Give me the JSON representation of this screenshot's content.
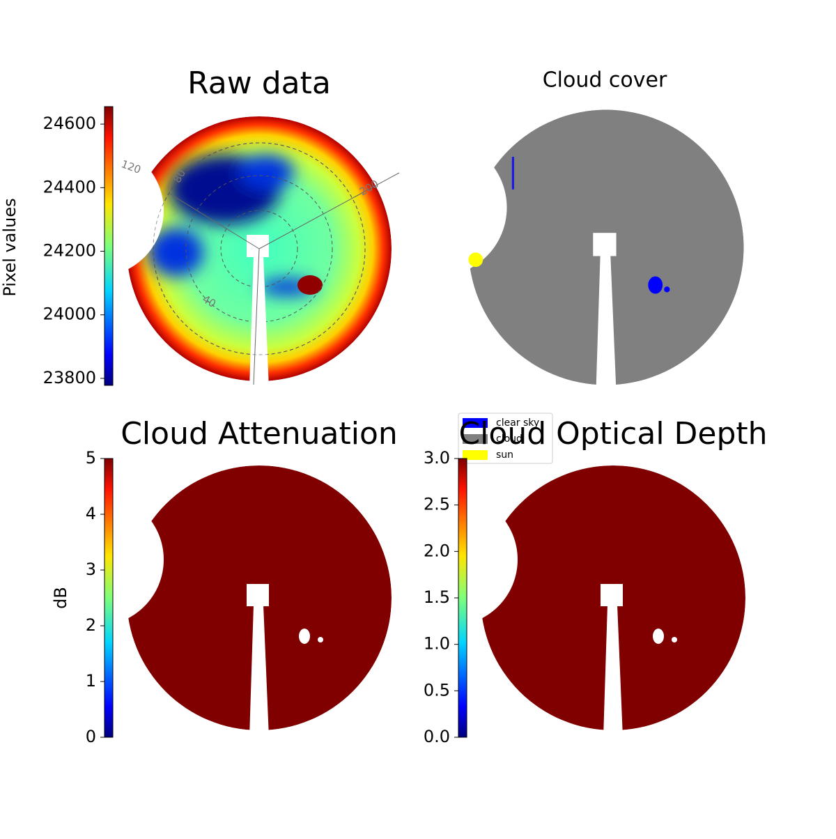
{
  "chart_data": [
    {
      "type": "image",
      "title": "Raw data",
      "colormap": "jet",
      "colorbar_label": "Pixel values",
      "clim": [
        23778,
        24655
      ],
      "ticks": [
        23800,
        24000,
        24200,
        24400,
        24600
      ],
      "annotations": [
        "120",
        "80",
        "40",
        "200"
      ]
    },
    {
      "type": "image",
      "title": "Cloud cover",
      "series": [
        {
          "name": "clear sky",
          "color": "#0000ff"
        },
        {
          "name": "cloud",
          "color": "#808080"
        },
        {
          "name": "sun",
          "color": "#ffff00"
        }
      ]
    },
    {
      "type": "image",
      "title": "Cloud Attenuation",
      "colormap": "jet",
      "colorbar_label": "dB",
      "clim": [
        0,
        5
      ],
      "ticks": [
        0,
        1,
        2,
        3,
        4,
        5
      ]
    },
    {
      "type": "image",
      "title": "Cloud Optical Depth",
      "colormap": "jet",
      "clim": [
        0,
        3
      ],
      "ticks": [
        {
          "value": 0,
          "label": "0.0"
        },
        0.5,
        {
          "value": 1,
          "label": "1.0"
        },
        1.5,
        {
          "value": 2,
          "label": "2.0"
        },
        2.5,
        {
          "value": 3,
          "label": "3.0"
        }
      ]
    }
  ]
}
